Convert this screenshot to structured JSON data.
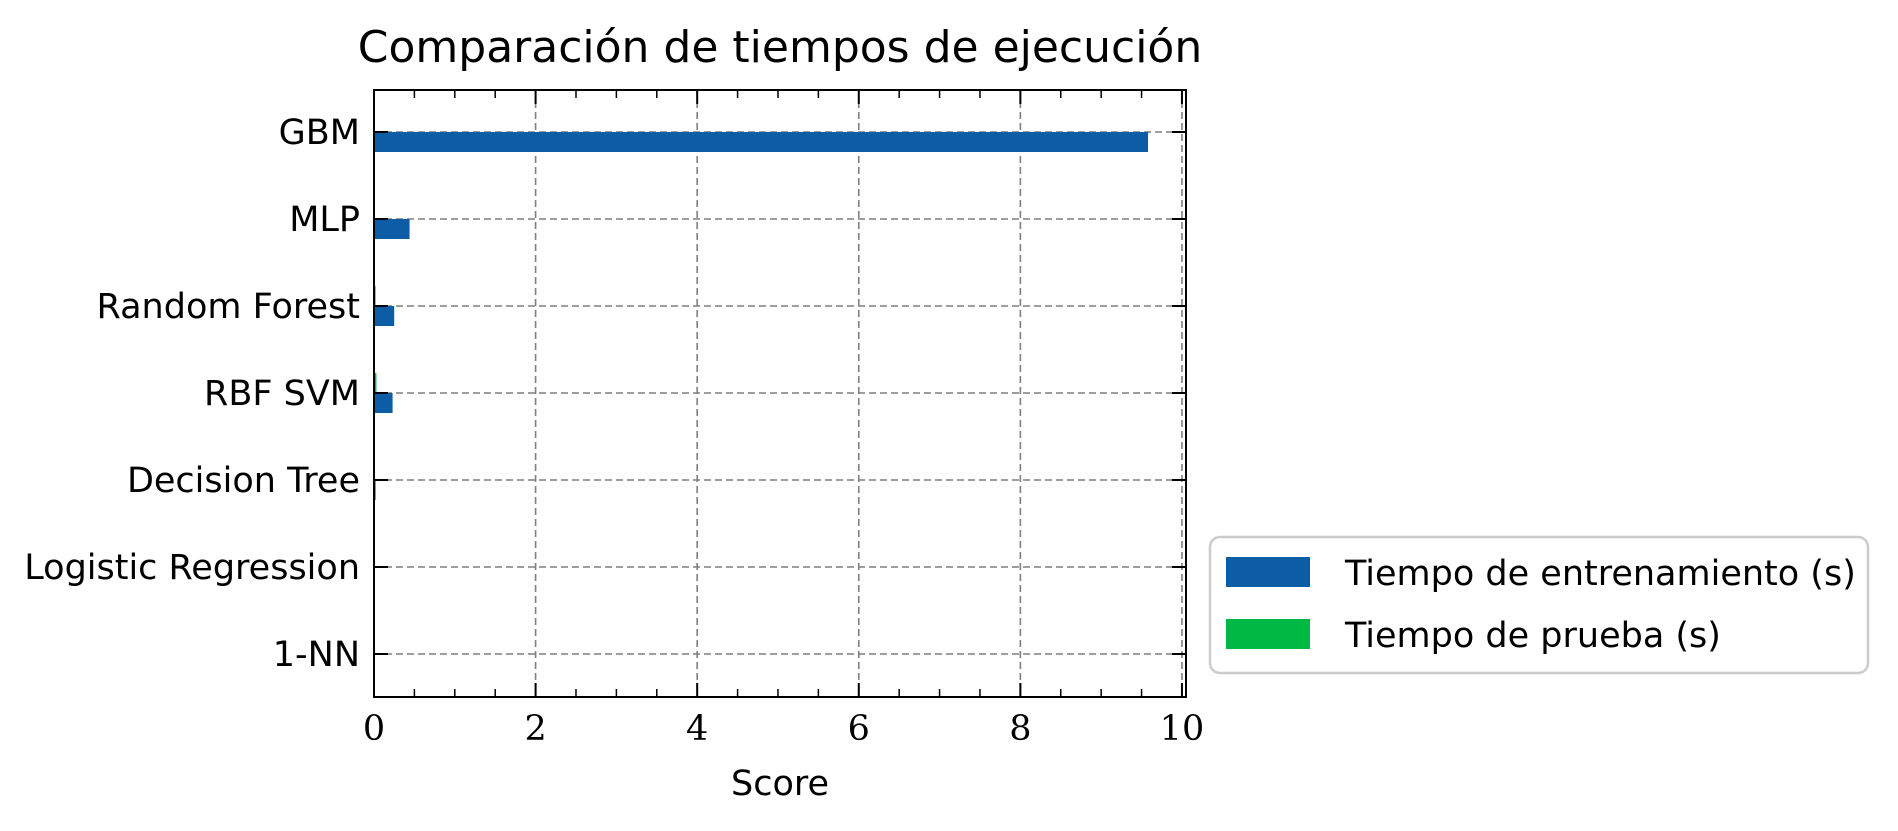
{
  "chart_data": {
    "type": "bar",
    "orientation": "horizontal",
    "title": "Comparación de tiempos de ejecución",
    "xlabel": "Score",
    "ylabel": "",
    "xlim": [
      0,
      10.05
    ],
    "xticks": [
      0,
      2,
      4,
      6,
      8,
      10
    ],
    "categories": [
      "GBM",
      "MLP",
      "Random Forest",
      "RBF SVM",
      "Decision Tree",
      "Logistic Regression",
      "1-NN"
    ],
    "series": [
      {
        "name": "Tiempo de entrenamiento (s)",
        "color": "#0c5da5",
        "values": [
          9.58,
          0.44,
          0.25,
          0.23,
          0.02,
          0.004,
          0.002
        ]
      },
      {
        "name": "Tiempo de prueba (s)",
        "color": "#00b945",
        "values": [
          0.0,
          0.004,
          0.02,
          0.03,
          0.002,
          0.002,
          0.004
        ]
      }
    ],
    "grid": true,
    "legend_position": "outside lower right"
  }
}
